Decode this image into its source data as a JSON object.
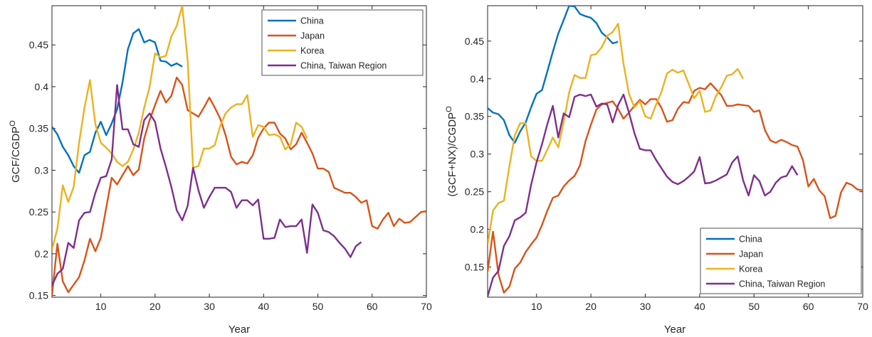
{
  "chart_data": [
    {
      "type": "line",
      "xlabel": "Year",
      "ylabel": "GCF/CGDP",
      "ylabel_superscript": "O",
      "xlim": [
        1,
        70
      ],
      "ylim": [
        0.148,
        0.497
      ],
      "xticks": [
        10,
        20,
        30,
        40,
        50,
        60,
        70
      ],
      "yticks": [
        0.15,
        0.2,
        0.25,
        0.3,
        0.35,
        0.4,
        0.45
      ],
      "ytick_labels": [
        "0.15",
        "0.2",
        "0.25",
        "0.3",
        "0.35",
        "0.4",
        "0.45"
      ],
      "legend_position": "top-right",
      "series": [
        {
          "name": "China",
          "color": "#0072BD",
          "x": [
            1,
            2,
            3,
            4,
            5,
            6,
            7,
            8,
            9,
            10,
            11,
            12,
            13,
            14,
            15,
            16,
            17,
            18,
            19,
            20,
            21,
            22,
            23,
            24,
            25
          ],
          "y": [
            0.352,
            0.343,
            0.328,
            0.318,
            0.305,
            0.297,
            0.318,
            0.322,
            0.345,
            0.358,
            0.342,
            0.356,
            0.373,
            0.405,
            0.445,
            0.464,
            0.469,
            0.453,
            0.456,
            0.453,
            0.431,
            0.43,
            0.425,
            0.428,
            0.424
          ]
        },
        {
          "name": "Japan",
          "color": "#D95319",
          "x": [
            1,
            2,
            3,
            4,
            5,
            6,
            7,
            8,
            9,
            10,
            11,
            12,
            13,
            14,
            15,
            16,
            17,
            18,
            19,
            20,
            21,
            22,
            23,
            24,
            25,
            26,
            27,
            28,
            29,
            30,
            31,
            32,
            33,
            34,
            35,
            36,
            37,
            38,
            39,
            40,
            41,
            42,
            43,
            44,
            45,
            46,
            47,
            48,
            49,
            50,
            51,
            52,
            53,
            54,
            55,
            56,
            57,
            58,
            59,
            60,
            61,
            62,
            63,
            64,
            65,
            66,
            67,
            68,
            69,
            70
          ],
          "y": [
            0.15,
            0.212,
            0.167,
            0.154,
            0.163,
            0.172,
            0.192,
            0.218,
            0.203,
            0.219,
            0.255,
            0.291,
            0.283,
            0.294,
            0.305,
            0.294,
            0.301,
            0.338,
            0.36,
            0.378,
            0.395,
            0.381,
            0.389,
            0.411,
            0.402,
            0.372,
            0.368,
            0.364,
            0.375,
            0.387,
            0.375,
            0.362,
            0.342,
            0.316,
            0.307,
            0.31,
            0.308,
            0.318,
            0.339,
            0.35,
            0.357,
            0.357,
            0.344,
            0.338,
            0.325,
            0.331,
            0.345,
            0.333,
            0.32,
            0.302,
            0.302,
            0.298,
            0.279,
            0.276,
            0.273,
            0.273,
            0.268,
            0.261,
            0.264,
            0.233,
            0.23,
            0.241,
            0.249,
            0.233,
            0.242,
            0.237,
            0.238,
            0.244,
            0.25,
            0.251
          ]
        },
        {
          "name": "Korea",
          "color": "#EDB120",
          "x": [
            1,
            2,
            3,
            4,
            5,
            6,
            7,
            8,
            9,
            10,
            11,
            12,
            13,
            14,
            15,
            16,
            17,
            18,
            19,
            20,
            21,
            22,
            23,
            24,
            25,
            26,
            27,
            28,
            29,
            30,
            31,
            32,
            33,
            34,
            35,
            36,
            37,
            38,
            39,
            40,
            41,
            42,
            43,
            44,
            45,
            46,
            47,
            48
          ],
          "y": [
            0.205,
            0.23,
            0.282,
            0.262,
            0.28,
            0.333,
            0.375,
            0.408,
            0.355,
            0.333,
            0.327,
            0.32,
            0.31,
            0.305,
            0.31,
            0.325,
            0.345,
            0.375,
            0.4,
            0.44,
            0.435,
            0.437,
            0.46,
            0.473,
            0.497,
            0.432,
            0.303,
            0.305,
            0.326,
            0.326,
            0.33,
            0.353,
            0.368,
            0.375,
            0.379,
            0.379,
            0.39,
            0.34,
            0.354,
            0.352,
            0.342,
            0.343,
            0.34,
            0.325,
            0.331,
            0.357,
            0.352,
            0.338
          ]
        },
        {
          "name": "China, Taiwan Region",
          "color": "#7E2F8E",
          "x": [
            1,
            2,
            3,
            4,
            5,
            6,
            7,
            8,
            9,
            10,
            11,
            12,
            13,
            14,
            15,
            16,
            17,
            18,
            19,
            20,
            21,
            22,
            23,
            24,
            25,
            26,
            27,
            28,
            29,
            30,
            31,
            32,
            33,
            34,
            35,
            36,
            37,
            38,
            39,
            40,
            41,
            42,
            43,
            44,
            45,
            46,
            47,
            48,
            49,
            50,
            51,
            52,
            53,
            54,
            55,
            56,
            57,
            58
          ],
          "y": [
            0.162,
            0.176,
            0.182,
            0.213,
            0.207,
            0.24,
            0.249,
            0.25,
            0.273,
            0.291,
            0.293,
            0.313,
            0.402,
            0.349,
            0.349,
            0.331,
            0.328,
            0.36,
            0.368,
            0.358,
            0.326,
            0.304,
            0.28,
            0.252,
            0.24,
            0.257,
            0.303,
            0.276,
            0.255,
            0.268,
            0.279,
            0.279,
            0.279,
            0.274,
            0.255,
            0.264,
            0.264,
            0.258,
            0.265,
            0.218,
            0.218,
            0.219,
            0.241,
            0.232,
            0.233,
            0.233,
            0.241,
            0.201,
            0.259,
            0.249,
            0.228,
            0.226,
            0.221,
            0.213,
            0.206,
            0.196,
            0.209,
            0.214
          ]
        }
      ]
    },
    {
      "type": "line",
      "xlabel": "Year",
      "ylabel": "(GCF+NX)/CGDP",
      "ylabel_superscript": "O",
      "xlim": [
        1,
        70
      ],
      "ylim": [
        0.11,
        0.497
      ],
      "xticks": [
        10,
        20,
        30,
        40,
        50,
        60,
        70
      ],
      "yticks": [
        0.15,
        0.2,
        0.25,
        0.3,
        0.35,
        0.4,
        0.45
      ],
      "ytick_labels": [
        "0.15",
        "0.2",
        "0.25",
        "0.3",
        "0.35",
        "0.4",
        "0.45"
      ],
      "legend_position": "bottom-right",
      "series": [
        {
          "name": "China",
          "color": "#0072BD",
          "x": [
            1,
            2,
            3,
            4,
            5,
            6,
            7,
            8,
            9,
            10,
            11,
            12,
            13,
            14,
            15,
            16,
            17,
            18,
            19,
            20,
            21,
            22,
            23,
            24,
            25
          ],
          "y": [
            0.361,
            0.355,
            0.353,
            0.345,
            0.325,
            0.315,
            0.33,
            0.342,
            0.362,
            0.38,
            0.385,
            0.41,
            0.436,
            0.46,
            0.478,
            0.497,
            0.496,
            0.486,
            0.483,
            0.481,
            0.474,
            0.461,
            0.455,
            0.447,
            0.449
          ]
        },
        {
          "name": "Japan",
          "color": "#D95319",
          "x": [
            1,
            2,
            3,
            4,
            5,
            6,
            7,
            8,
            9,
            10,
            11,
            12,
            13,
            14,
            15,
            16,
            17,
            18,
            19,
            20,
            21,
            22,
            23,
            24,
            25,
            26,
            27,
            28,
            29,
            30,
            31,
            32,
            33,
            34,
            35,
            36,
            37,
            38,
            39,
            40,
            41,
            42,
            43,
            44,
            45,
            46,
            47,
            48,
            49,
            50,
            51,
            52,
            53,
            54,
            55,
            56,
            57,
            58,
            59,
            60,
            61,
            62,
            63,
            64,
            65,
            66,
            67,
            68,
            69,
            70
          ],
          "y": [
            0.144,
            0.197,
            0.14,
            0.116,
            0.124,
            0.148,
            0.156,
            0.17,
            0.18,
            0.189,
            0.206,
            0.225,
            0.242,
            0.245,
            0.257,
            0.265,
            0.271,
            0.285,
            0.317,
            0.339,
            0.359,
            0.366,
            0.368,
            0.37,
            0.36,
            0.347,
            0.355,
            0.364,
            0.372,
            0.366,
            0.373,
            0.373,
            0.361,
            0.343,
            0.345,
            0.36,
            0.369,
            0.368,
            0.384,
            0.388,
            0.386,
            0.394,
            0.386,
            0.378,
            0.364,
            0.364,
            0.366,
            0.365,
            0.364,
            0.356,
            0.358,
            0.332,
            0.318,
            0.315,
            0.319,
            0.316,
            0.312,
            0.31,
            0.292,
            0.257,
            0.267,
            0.252,
            0.244,
            0.215,
            0.218,
            0.249,
            0.262,
            0.259,
            0.253,
            0.252
          ]
        },
        {
          "name": "Korea",
          "color": "#EDB120",
          "x": [
            1,
            2,
            3,
            4,
            5,
            6,
            7,
            8,
            9,
            10,
            11,
            12,
            13,
            14,
            15,
            16,
            17,
            18,
            19,
            20,
            21,
            22,
            23,
            24,
            25,
            26,
            27,
            28,
            29,
            30,
            31,
            32,
            33,
            34,
            35,
            36,
            37,
            38,
            39,
            40,
            41,
            42,
            43,
            44,
            45,
            46,
            47,
            48
          ],
          "y": [
            0.18,
            0.225,
            0.235,
            0.238,
            0.284,
            0.325,
            0.341,
            0.341,
            0.297,
            0.291,
            0.291,
            0.306,
            0.322,
            0.309,
            0.343,
            0.382,
            0.405,
            0.401,
            0.401,
            0.431,
            0.433,
            0.442,
            0.457,
            0.462,
            0.473,
            0.42,
            0.38,
            0.362,
            0.37,
            0.35,
            0.347,
            0.366,
            0.383,
            0.407,
            0.412,
            0.408,
            0.411,
            0.393,
            0.374,
            0.384,
            0.356,
            0.358,
            0.377,
            0.389,
            0.404,
            0.406,
            0.413,
            0.4
          ]
        },
        {
          "name": "China, Taiwan Region",
          "color": "#7E2F8E",
          "x": [
            1,
            2,
            3,
            4,
            5,
            6,
            7,
            8,
            9,
            10,
            11,
            12,
            13,
            14,
            15,
            16,
            17,
            18,
            19,
            20,
            21,
            22,
            23,
            24,
            25,
            26,
            27,
            28,
            29,
            30,
            31,
            32,
            33,
            34,
            35,
            36,
            37,
            38,
            39,
            40,
            41,
            42,
            43,
            44,
            45,
            46,
            47,
            48,
            49,
            50,
            51,
            52,
            53,
            54,
            55,
            56,
            57,
            58
          ],
          "y": [
            0.111,
            0.136,
            0.145,
            0.178,
            0.191,
            0.212,
            0.216,
            0.222,
            0.259,
            0.289,
            0.313,
            0.34,
            0.364,
            0.322,
            0.354,
            0.349,
            0.376,
            0.379,
            0.377,
            0.379,
            0.363,
            0.367,
            0.366,
            0.342,
            0.365,
            0.379,
            0.355,
            0.328,
            0.307,
            0.305,
            0.305,
            0.292,
            0.281,
            0.27,
            0.263,
            0.26,
            0.264,
            0.27,
            0.277,
            0.296,
            0.261,
            0.262,
            0.265,
            0.269,
            0.273,
            0.289,
            0.297,
            0.265,
            0.245,
            0.272,
            0.264,
            0.245,
            0.25,
            0.262,
            0.269,
            0.271,
            0.284,
            0.272
          ]
        }
      ]
    }
  ]
}
